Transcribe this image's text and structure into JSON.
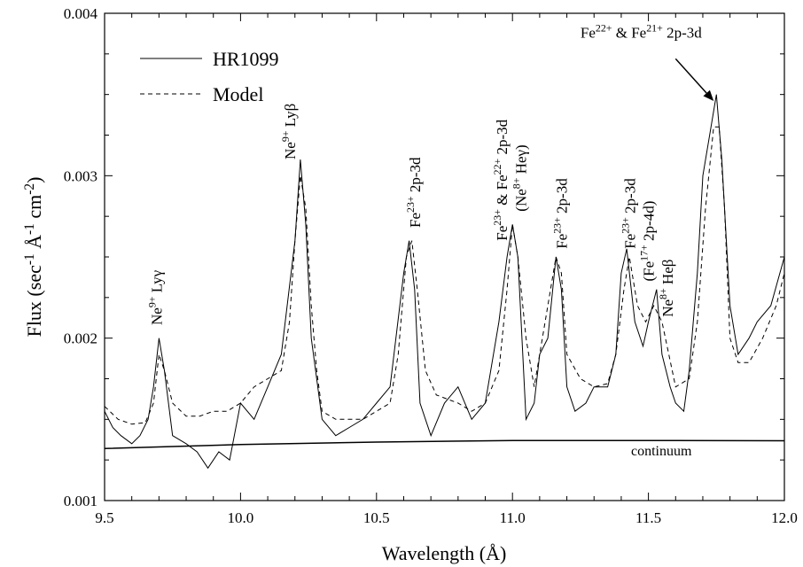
{
  "chart_data": {
    "type": "line",
    "xlabel": "Wavelength (Å)",
    "ylabel": "Flux (sec-1 Å-1 cm-2)",
    "ylabel_parts": [
      "Flux (sec",
      "-1",
      " Å",
      "-1",
      " cm",
      "-2",
      ")"
    ],
    "xlim": [
      9.5,
      12.0
    ],
    "ylim": [
      0.001,
      0.004
    ],
    "xticks": [
      9.5,
      10.0,
      10.5,
      11.0,
      11.5,
      12.0
    ],
    "xtick_labels": [
      "9.5",
      "10.0",
      "10.5",
      "11.0",
      "11.5",
      "12.0"
    ],
    "yticks": [
      0.001,
      0.002,
      0.003,
      0.004
    ],
    "ytick_labels": [
      "0.001",
      "0.002",
      "0.003",
      "0.004"
    ],
    "grid": false,
    "legend_position": "top-left",
    "legend": [
      {
        "label": "HR1099",
        "style": "solid"
      },
      {
        "label": "Model",
        "style": "dashed"
      }
    ],
    "continuum": {
      "label": "continuum",
      "x": [
        9.5,
        10.0,
        10.5,
        11.0,
        11.5,
        12.0
      ],
      "y": [
        0.00132,
        0.001345,
        0.00136,
        0.00137,
        0.00137,
        0.001368
      ]
    },
    "series": [
      {
        "name": "HR1099",
        "style": "solid",
        "x": [
          9.5,
          9.53,
          9.56,
          9.6,
          9.63,
          9.66,
          9.68,
          9.7,
          9.72,
          9.75,
          9.8,
          9.84,
          9.88,
          9.92,
          9.96,
          10.0,
          10.05,
          10.1,
          10.15,
          10.2,
          10.22,
          10.24,
          10.26,
          10.3,
          10.35,
          10.4,
          10.45,
          10.5,
          10.55,
          10.6,
          10.62,
          10.64,
          10.66,
          10.7,
          10.75,
          10.8,
          10.85,
          10.9,
          10.95,
          10.98,
          11.0,
          11.02,
          11.05,
          11.08,
          11.1,
          11.13,
          11.16,
          11.18,
          11.2,
          11.23,
          11.27,
          11.3,
          11.35,
          11.38,
          11.4,
          11.42,
          11.45,
          11.48,
          11.5,
          11.53,
          11.55,
          11.58,
          11.6,
          11.63,
          11.65,
          11.68,
          11.7,
          11.73,
          11.75,
          11.77,
          11.8,
          11.83,
          11.87,
          11.9,
          11.95,
          12.0
        ],
        "y": [
          0.00155,
          0.00145,
          0.0014,
          0.00135,
          0.0014,
          0.0015,
          0.0017,
          0.002,
          0.0018,
          0.0014,
          0.00135,
          0.0013,
          0.0012,
          0.0013,
          0.00125,
          0.0016,
          0.0015,
          0.0017,
          0.0019,
          0.0026,
          0.0031,
          0.0027,
          0.002,
          0.0015,
          0.0014,
          0.00145,
          0.0015,
          0.0016,
          0.0017,
          0.0024,
          0.0026,
          0.0023,
          0.0016,
          0.0014,
          0.0016,
          0.0017,
          0.0015,
          0.0016,
          0.0021,
          0.0025,
          0.0027,
          0.0025,
          0.0015,
          0.0016,
          0.0019,
          0.002,
          0.0025,
          0.0023,
          0.0017,
          0.00155,
          0.0016,
          0.0017,
          0.0017,
          0.0019,
          0.0024,
          0.00255,
          0.0021,
          0.00195,
          0.0021,
          0.0023,
          0.0019,
          0.0017,
          0.0016,
          0.00155,
          0.0018,
          0.0024,
          0.003,
          0.0033,
          0.0035,
          0.0031,
          0.0022,
          0.0019,
          0.002,
          0.0021,
          0.0022,
          0.0025
        ]
      },
      {
        "name": "Model",
        "style": "dashed",
        "x": [
          9.5,
          9.55,
          9.6,
          9.65,
          9.68,
          9.7,
          9.72,
          9.75,
          9.8,
          9.85,
          9.9,
          9.95,
          10.0,
          10.05,
          10.1,
          10.15,
          10.18,
          10.2,
          10.22,
          10.24,
          10.26,
          10.28,
          10.3,
          10.35,
          10.4,
          10.45,
          10.5,
          10.55,
          10.58,
          10.61,
          10.63,
          10.65,
          10.68,
          10.72,
          10.8,
          10.85,
          10.9,
          10.95,
          10.98,
          11.0,
          11.02,
          11.05,
          11.08,
          11.1,
          11.13,
          11.16,
          11.18,
          11.2,
          11.25,
          11.3,
          11.35,
          11.38,
          11.41,
          11.43,
          11.46,
          11.49,
          11.52,
          11.55,
          11.6,
          11.65,
          11.68,
          11.71,
          11.74,
          11.76,
          11.78,
          11.8,
          11.83,
          11.87,
          11.92,
          11.97,
          12.0
        ],
        "y": [
          0.00158,
          0.0015,
          0.00147,
          0.00148,
          0.0016,
          0.0019,
          0.0018,
          0.0016,
          0.00152,
          0.00152,
          0.00155,
          0.00155,
          0.0016,
          0.0017,
          0.00175,
          0.0018,
          0.0021,
          0.0026,
          0.003,
          0.0028,
          0.0022,
          0.0018,
          0.00155,
          0.0015,
          0.0015,
          0.0015,
          0.00155,
          0.0016,
          0.0019,
          0.0025,
          0.0026,
          0.0023,
          0.0018,
          0.00165,
          0.0016,
          0.00155,
          0.0016,
          0.0018,
          0.0023,
          0.0027,
          0.0025,
          0.002,
          0.0017,
          0.0019,
          0.0022,
          0.0025,
          0.0024,
          0.0019,
          0.00175,
          0.0017,
          0.00172,
          0.0019,
          0.0023,
          0.0025,
          0.0022,
          0.0021,
          0.0022,
          0.0021,
          0.0017,
          0.00175,
          0.0021,
          0.0028,
          0.0033,
          0.0033,
          0.0028,
          0.002,
          0.00185,
          0.00185,
          0.002,
          0.0022,
          0.0024
        ]
      }
    ],
    "annotations": [
      {
        "x": 9.71,
        "y": 0.00208,
        "rotate": -90,
        "parts": [
          "Ne",
          "9+",
          " Lyγ"
        ]
      },
      {
        "x": 10.2,
        "y": 0.0031,
        "rotate": -90,
        "parts": [
          "Ne",
          "9+",
          " Lyβ"
        ]
      },
      {
        "x": 10.66,
        "y": 0.00268,
        "rotate": -90,
        "parts": [
          "Fe",
          "23+",
          " 2p-3d"
        ]
      },
      {
        "x": 10.98,
        "y": 0.0026,
        "rotate": -90,
        "parts": [
          "Fe",
          "23+",
          " & Fe",
          "22+",
          " 2p-3d"
        ]
      },
      {
        "x": 11.05,
        "y": 0.00278,
        "rotate": -90,
        "parts": [
          "(Ne",
          "8+",
          " Heγ)"
        ]
      },
      {
        "x": 11.2,
        "y": 0.00255,
        "rotate": -90,
        "parts": [
          "Fe",
          "23+",
          " 2p-3d"
        ]
      },
      {
        "x": 11.45,
        "y": 0.00255,
        "rotate": -90,
        "parts": [
          "Fe",
          "23+",
          " 2p-3d"
        ]
      },
      {
        "x": 11.52,
        "y": 0.00235,
        "rotate": -90,
        "parts": [
          "(Fe",
          "17+",
          " 2p-4d)"
        ]
      },
      {
        "x": 11.59,
        "y": 0.00213,
        "rotate": -90,
        "parts": [
          "Ne",
          "8+",
          " Heβ"
        ]
      },
      {
        "x": 11.25,
        "y": 0.00385,
        "rotate": 0,
        "parts": [
          "Fe",
          "22+",
          " & Fe",
          "21+",
          " 2p-3d"
        ]
      }
    ],
    "arrow": {
      "x1": 11.6,
      "y1": 0.00372,
      "x2": 11.74,
      "y2": 0.00346
    }
  }
}
